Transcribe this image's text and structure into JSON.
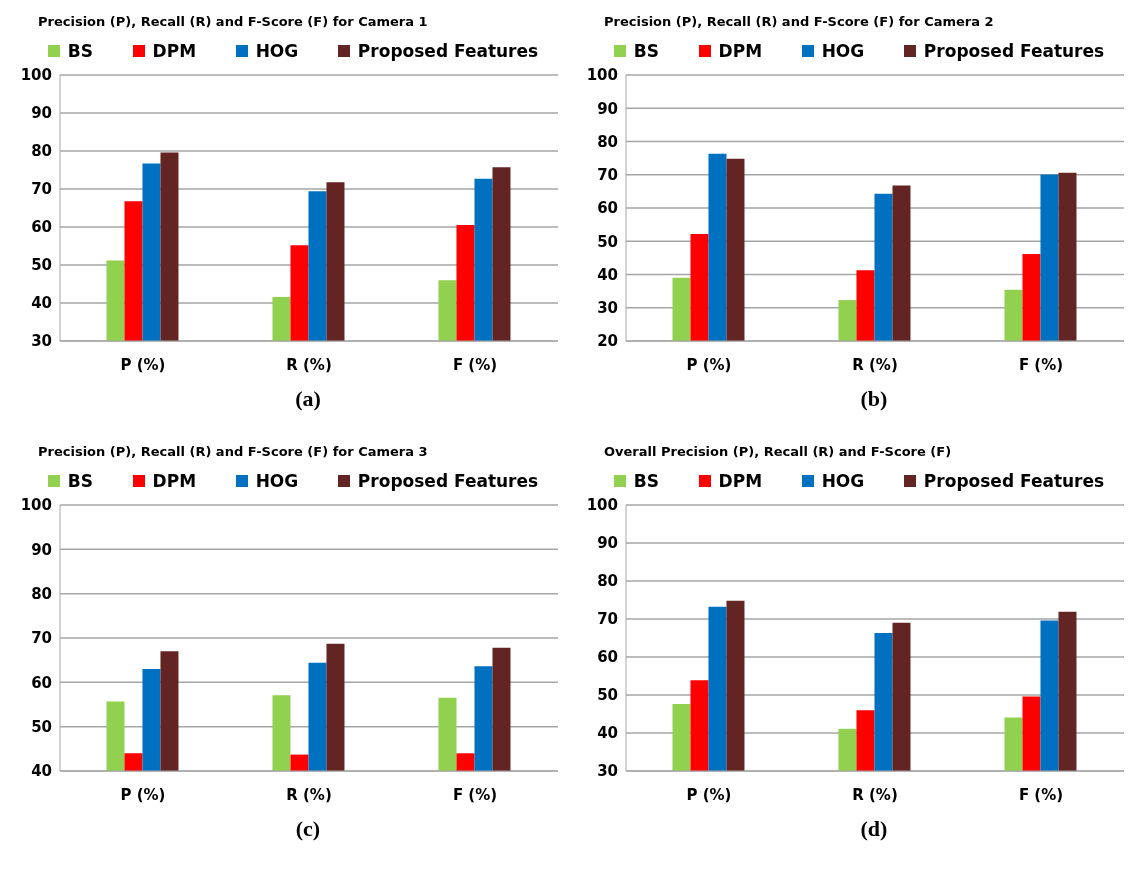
{
  "chart_data": [
    {
      "type": "bar",
      "title": "Precision (P), Recall (R) and F-Score (F) for Camera 1",
      "categories": [
        "P (%)",
        "R (%)",
        "F (%)"
      ],
      "series": [
        {
          "name": "BS",
          "color": "#92d050",
          "values": [
            51.2,
            41.6,
            46
          ]
        },
        {
          "name": "DPM",
          "color": "#ff0000",
          "values": [
            66.8,
            55.2,
            60.5
          ]
        },
        {
          "name": "HOG",
          "color": "#0070c0",
          "values": [
            76.7,
            69.4,
            72.7
          ]
        },
        {
          "name": "Proposed Features",
          "color": "#632523",
          "values": [
            79.6,
            71.8,
            75.7
          ]
        }
      ],
      "ylim": [
        30,
        100
      ],
      "yticks": [
        30,
        40,
        50,
        60,
        70,
        80,
        90,
        100
      ],
      "grid": "y",
      "legend": "top",
      "annotations": [
        "(a)"
      ]
    },
    {
      "type": "bar",
      "title": "Precision (P), Recall (R) and F-Score (F) for Camera 2",
      "categories": [
        "P (%)",
        "R (%)",
        "F (%)"
      ],
      "series": [
        {
          "name": "BS",
          "color": "#92d050",
          "values": [
            39,
            32.3,
            35.4
          ]
        },
        {
          "name": "DPM",
          "color": "#ff0000",
          "values": [
            52.2,
            41.3,
            46.2
          ]
        },
        {
          "name": "HOG",
          "color": "#0070c0",
          "values": [
            76.3,
            64.3,
            70.1
          ]
        },
        {
          "name": "Proposed Features",
          "color": "#632523",
          "values": [
            74.8,
            66.8,
            70.6
          ]
        }
      ],
      "ylim": [
        20,
        100
      ],
      "yticks": [
        20,
        30,
        40,
        50,
        60,
        70,
        80,
        90,
        100
      ],
      "grid": "y",
      "legend": "top",
      "annotations": [
        "(b)"
      ]
    },
    {
      "type": "bar",
      "title": "Precision (P), Recall (R) and F-Score (F) for Camera 3",
      "categories": [
        "P (%)",
        "R (%)",
        "F (%)"
      ],
      "series": [
        {
          "name": "BS",
          "color": "#92d050",
          "values": [
            55.7,
            57.1,
            56.5
          ]
        },
        {
          "name": "DPM",
          "color": "#ff0000",
          "values": [
            44,
            43.7,
            44
          ]
        },
        {
          "name": "HOG",
          "color": "#0070c0",
          "values": [
            63,
            64.4,
            63.6
          ]
        },
        {
          "name": "Proposed Features",
          "color": "#632523",
          "values": [
            67,
            68.7,
            67.8
          ]
        }
      ],
      "ylim": [
        40,
        100
      ],
      "yticks": [
        40,
        50,
        60,
        70,
        80,
        90,
        100
      ],
      "grid": "y",
      "legend": "top",
      "annotations": [
        "(c)"
      ]
    },
    {
      "type": "bar",
      "title": "Overall Precision (P), Recall (R) and F-Score (F)",
      "categories": [
        "P (%)",
        "R (%)",
        "F (%)"
      ],
      "series": [
        {
          "name": "BS",
          "color": "#92d050",
          "values": [
            47.6,
            41.1,
            44.1
          ]
        },
        {
          "name": "DPM",
          "color": "#ff0000",
          "values": [
            53.9,
            46,
            49.6
          ]
        },
        {
          "name": "HOG",
          "color": "#0070c0",
          "values": [
            73.2,
            66.3,
            69.6
          ]
        },
        {
          "name": "Proposed Features",
          "color": "#632523",
          "values": [
            74.8,
            69,
            71.9
          ]
        }
      ],
      "ylim": [
        30,
        100
      ],
      "yticks": [
        30,
        40,
        50,
        60,
        70,
        80,
        90,
        100
      ],
      "grid": "y",
      "legend": "top",
      "annotations": [
        "(d)"
      ]
    }
  ]
}
